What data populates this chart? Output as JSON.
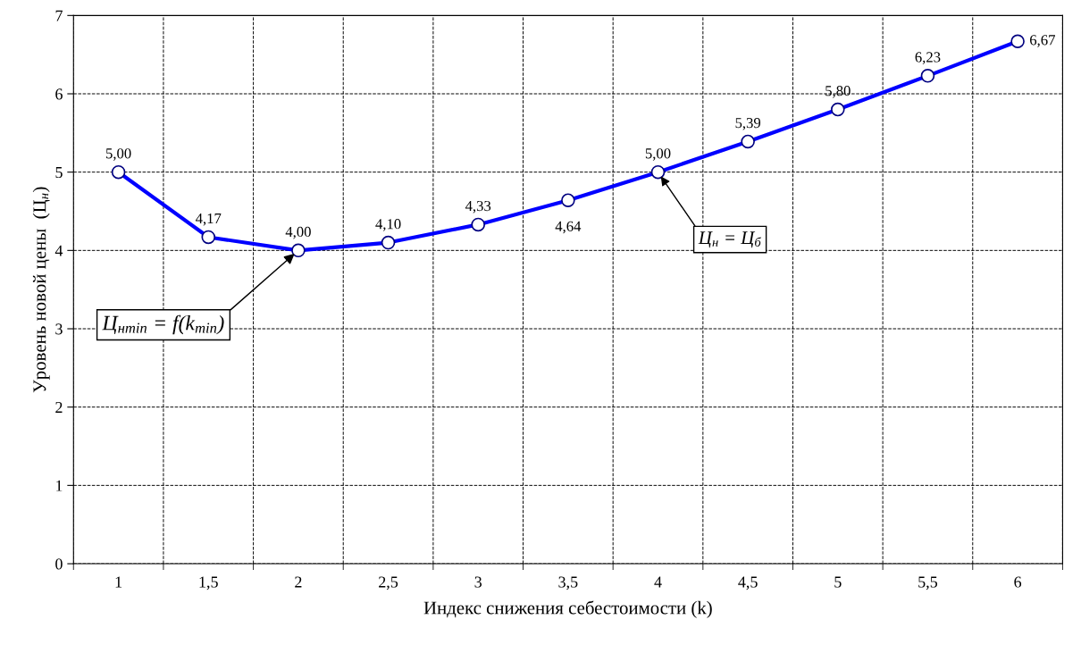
{
  "chart_data": {
    "type": "line",
    "xlabel": "Индекс снижения себестоимости (k)",
    "ylabel": "Уровень новой цены  (Ц$_{н}$)",
    "categories": [
      "1",
      "1,5",
      "2",
      "2,5",
      "3",
      "3,5",
      "4",
      "4,5",
      "5",
      "5,5",
      "6"
    ],
    "series": [
      {
        "color": "#0000ff",
        "values": [
          5.0,
          4.17,
          4.0,
          4.1,
          4.33,
          4.64,
          5.0,
          5.39,
          5.8,
          6.23,
          6.67
        ],
        "value_labels": [
          "5,00",
          "4,17",
          "4,00",
          "4,10",
          "4,33",
          "4,64",
          "5,00",
          "5,39",
          "5,80",
          "6,23",
          "6,67"
        ]
      }
    ],
    "ylim": [
      0,
      7
    ],
    "yticks": [
      0,
      1,
      2,
      3,
      4,
      5,
      6,
      7
    ],
    "grid": true,
    "marker": "circle",
    "line_style": "solid",
    "legend": false,
    "annotations": [
      {
        "text": "Ц$_{нmin}$ = f(k$_{min}$)",
        "x": "2",
        "y": 4.0
      },
      {
        "text": "Ц$_{н}$ = Ц$_{б}$",
        "x": "4",
        "y": 5.0
      }
    ]
  }
}
